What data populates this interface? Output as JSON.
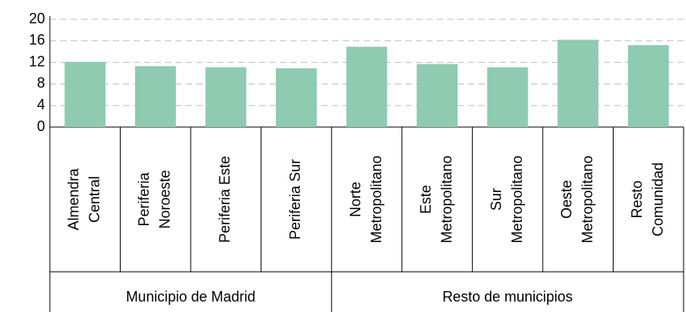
{
  "chart_data": {
    "type": "bar",
    "categories": [
      [
        "Almendra",
        "Central"
      ],
      [
        "Periferia",
        "Noroeste"
      ],
      [
        "Periferia Este"
      ],
      [
        "Periferia Sur"
      ],
      [
        "Norte",
        "Metropolitano"
      ],
      [
        "Este",
        "Metropolitano"
      ],
      [
        "Sur",
        "Metropolitano"
      ],
      [
        "Oeste",
        "Metropolitano"
      ],
      [
        "Resto",
        "Comunidad"
      ]
    ],
    "groups": [
      {
        "name": "Municipio de Madrid",
        "count": 4
      },
      {
        "name": "Resto de municipios",
        "count": 5
      }
    ],
    "values": [
      12.1,
      11.3,
      11.1,
      10.9,
      14.9,
      11.7,
      11.1,
      16.2,
      15.2
    ],
    "color": "#8ecbb1",
    "ylim": [
      0,
      20
    ],
    "yticks": [
      0,
      4,
      8,
      12,
      16,
      20
    ],
    "grid": true
  }
}
